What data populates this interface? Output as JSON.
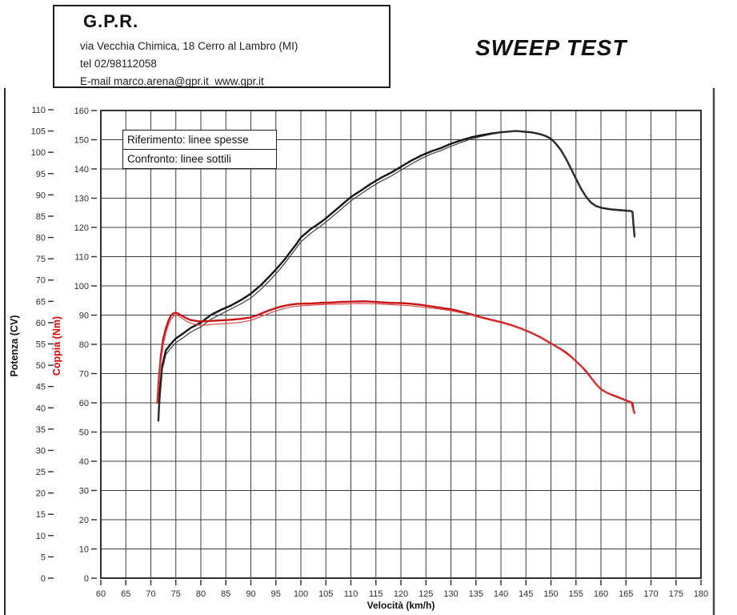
{
  "header": {
    "company": "G.P.R.",
    "address": "via Vecchia Chimica, 18 Cerro al Lambro (MI)",
    "phone": "tel 02/98112058",
    "email_line": "E-mail marco.arena@gpr.it  www.gpr.it"
  },
  "title": "SWEEP TEST",
  "legend": {
    "reference": "Riferimento: linee spesse",
    "comparison": "Confronto: linee sottili"
  },
  "chart_data": {
    "type": "line",
    "x_axis": {
      "label": "Velocità (km/h)",
      "min": 60,
      "max": 180,
      "tick_step": 5
    },
    "y_axis_power": {
      "label": "Potenza (CV)",
      "min": 0,
      "max": 110,
      "tick_step": 5,
      "color": "#111111"
    },
    "y_axis_torque": {
      "label": "Coppia (Nm)",
      "min": 0,
      "max": 160,
      "tick_step": 10,
      "color": "#e00000"
    },
    "grid": {
      "vertical_step_kmh": 5,
      "horizontal_step_nm": 10,
      "color": "#3c3c3c"
    },
    "series": [
      {
        "name": "potenza-riferimento",
        "axis": "cv",
        "color": "#141414",
        "width": 2.4,
        "points": [
          [
            71.5,
            37
          ],
          [
            71.8,
            44
          ],
          [
            72.3,
            50
          ],
          [
            73,
            53.5
          ],
          [
            74,
            55
          ],
          [
            75,
            56.3
          ],
          [
            76.5,
            57.5
          ],
          [
            78,
            58.8
          ],
          [
            80,
            60
          ],
          [
            82,
            61.8
          ],
          [
            84,
            63
          ],
          [
            86,
            64
          ],
          [
            88,
            65.3
          ],
          [
            90,
            66.8
          ],
          [
            92,
            68.8
          ],
          [
            94,
            71.2
          ],
          [
            95,
            72.5
          ],
          [
            96,
            73.8
          ],
          [
            97,
            75.2
          ],
          [
            98,
            76.8
          ],
          [
            99,
            78.3
          ],
          [
            100,
            80
          ],
          [
            101,
            81
          ],
          [
            102,
            82
          ],
          [
            103,
            82.8
          ],
          [
            104,
            83.6
          ],
          [
            105,
            84.5
          ],
          [
            106,
            85.5
          ],
          [
            107,
            86.5
          ],
          [
            108,
            87.5
          ],
          [
            109,
            88.5
          ],
          [
            110,
            89.5
          ],
          [
            112,
            91
          ],
          [
            114,
            92.6
          ],
          [
            116,
            94
          ],
          [
            118,
            95.2
          ],
          [
            120,
            96.6
          ],
          [
            122,
            98
          ],
          [
            124,
            99.2
          ],
          [
            126,
            100.2
          ],
          [
            128,
            101
          ],
          [
            130,
            102
          ],
          [
            132,
            102.8
          ],
          [
            134,
            103.5
          ],
          [
            136,
            104
          ],
          [
            138,
            104.4
          ],
          [
            140,
            104.7
          ],
          [
            142,
            104.9
          ],
          [
            143,
            105
          ],
          [
            144,
            104.9
          ],
          [
            145,
            104.8
          ],
          [
            146,
            104.7
          ],
          [
            147,
            104.5
          ],
          [
            148,
            104.2
          ],
          [
            149,
            103.8
          ],
          [
            150,
            103.2
          ],
          [
            151,
            102
          ],
          [
            152,
            100.5
          ],
          [
            153,
            98.5
          ],
          [
            154,
            96.2
          ],
          [
            155,
            93.8
          ],
          [
            156,
            91.5
          ],
          [
            157,
            89.6
          ],
          [
            158,
            88.2
          ],
          [
            159,
            87.4
          ],
          [
            160,
            87
          ],
          [
            161,
            86.8
          ],
          [
            162,
            86.6
          ],
          [
            163,
            86.5
          ],
          [
            164,
            86.4
          ],
          [
            165,
            86.3
          ],
          [
            166,
            86.2
          ],
          [
            166.3,
            86
          ],
          [
            166.5,
            83
          ],
          [
            166.7,
            80.3
          ]
        ]
      },
      {
        "name": "potenza-confronto",
        "axis": "cv",
        "color": "#3d3d3d",
        "width": 1.2,
        "points": [
          [
            71.5,
            37
          ],
          [
            72.3,
            49
          ],
          [
            73,
            52.5
          ],
          [
            74,
            54
          ],
          [
            75,
            55.3
          ],
          [
            76.5,
            56.5
          ],
          [
            78,
            57.8
          ],
          [
            80,
            59
          ],
          [
            82,
            60.8
          ],
          [
            84,
            62
          ],
          [
            86,
            63.2
          ],
          [
            88,
            64.4
          ],
          [
            90,
            65.8
          ],
          [
            92,
            67.8
          ],
          [
            94,
            70.2
          ],
          [
            96,
            72.8
          ],
          [
            98,
            75.8
          ],
          [
            100,
            79
          ],
          [
            102,
            81
          ],
          [
            104,
            82.7
          ],
          [
            106,
            84.6
          ],
          [
            108,
            86.6
          ],
          [
            110,
            88.6
          ],
          [
            112,
            90.2
          ],
          [
            114,
            91.8
          ],
          [
            116,
            93.2
          ],
          [
            118,
            94.4
          ],
          [
            120,
            95.8
          ],
          [
            122,
            97.2
          ],
          [
            124,
            98.5
          ],
          [
            126,
            99.6
          ],
          [
            128,
            100.4
          ],
          [
            130,
            101.4
          ],
          [
            132,
            102.3
          ],
          [
            134,
            103.1
          ],
          [
            136,
            103.7
          ],
          [
            138,
            104.2
          ],
          [
            140,
            104.6
          ],
          [
            142,
            104.9
          ],
          [
            143,
            105
          ],
          [
            144,
            105
          ],
          [
            145,
            104.9
          ],
          [
            146,
            104.8
          ],
          [
            147,
            104.6
          ],
          [
            148,
            104.3
          ],
          [
            149,
            103.9
          ],
          [
            150,
            103.3
          ],
          [
            151,
            102.1
          ],
          [
            152,
            100.6
          ],
          [
            153,
            98.6
          ],
          [
            154,
            96.3
          ],
          [
            155,
            93.9
          ],
          [
            156,
            91.6
          ],
          [
            157,
            89.7
          ],
          [
            158,
            88.3
          ],
          [
            159,
            87.5
          ],
          [
            160,
            87.1
          ],
          [
            162,
            86.7
          ],
          [
            164,
            86.5
          ],
          [
            166,
            86.3
          ],
          [
            166.3,
            86
          ],
          [
            166.5,
            82
          ],
          [
            166.7,
            80
          ]
        ]
      },
      {
        "name": "coppia-riferimento",
        "axis": "nm",
        "color": "#c81414",
        "width": 2.4,
        "points": [
          [
            71.3,
            60
          ],
          [
            71.6,
            68
          ],
          [
            72,
            76
          ],
          [
            72.5,
            82
          ],
          [
            73,
            85.5
          ],
          [
            73.5,
            88
          ],
          [
            74,
            89.8
          ],
          [
            74.5,
            90.6
          ],
          [
            75,
            90.8
          ],
          [
            75.5,
            90.5
          ],
          [
            76,
            90
          ],
          [
            77,
            89
          ],
          [
            78,
            88.3
          ],
          [
            79,
            88
          ],
          [
            80,
            87.8
          ],
          [
            81,
            87.9
          ],
          [
            82,
            88
          ],
          [
            84,
            88.2
          ],
          [
            86,
            88.4
          ],
          [
            88,
            88.7
          ],
          [
            90,
            89.2
          ],
          [
            91,
            89.8
          ],
          [
            92,
            90.5
          ],
          [
            93,
            91.2
          ],
          [
            94,
            91.8
          ],
          [
            95,
            92.4
          ],
          [
            96,
            92.9
          ],
          [
            97,
            93.3
          ],
          [
            98,
            93.6
          ],
          [
            99,
            93.8
          ],
          [
            100,
            93.9
          ],
          [
            102,
            94
          ],
          [
            104,
            94.2
          ],
          [
            106,
            94.3
          ],
          [
            108,
            94.5
          ],
          [
            110,
            94.6
          ],
          [
            112,
            94.7
          ],
          [
            113,
            94.7
          ],
          [
            114,
            94.6
          ],
          [
            115,
            94.5
          ],
          [
            116,
            94.4
          ],
          [
            118,
            94.2
          ],
          [
            120,
            94.1
          ],
          [
            122,
            93.9
          ],
          [
            124,
            93.5
          ],
          [
            126,
            93
          ],
          [
            128,
            92.5
          ],
          [
            130,
            92
          ],
          [
            132,
            91.2
          ],
          [
            134,
            90.3
          ],
          [
            136,
            89.3
          ],
          [
            138,
            88.4
          ],
          [
            140,
            87.6
          ],
          [
            142,
            86.6
          ],
          [
            144,
            85.4
          ],
          [
            146,
            84
          ],
          [
            148,
            82.3
          ],
          [
            150,
            80.3
          ],
          [
            152,
            78.3
          ],
          [
            153,
            77.2
          ],
          [
            154,
            75.8
          ],
          [
            155,
            74.2
          ],
          [
            156,
            72.6
          ],
          [
            157,
            70.8
          ],
          [
            158,
            68.6
          ],
          [
            159,
            66.4
          ],
          [
            160,
            64.6
          ],
          [
            161,
            63.6
          ],
          [
            162,
            62.8
          ],
          [
            163,
            62.2
          ],
          [
            164,
            61.5
          ],
          [
            165,
            60.8
          ],
          [
            166,
            60.2
          ],
          [
            166.3,
            59.8
          ],
          [
            166.5,
            57.5
          ],
          [
            166.7,
            56.5
          ]
        ]
      },
      {
        "name": "coppia-confronto",
        "axis": "nm",
        "color": "#e04848",
        "width": 1.2,
        "points": [
          [
            71.3,
            60
          ],
          [
            72,
            74
          ],
          [
            72.5,
            80
          ],
          [
            73,
            84
          ],
          [
            73.5,
            86.5
          ],
          [
            74,
            88.5
          ],
          [
            74.5,
            89.6
          ],
          [
            75,
            90
          ],
          [
            75.5,
            89.8
          ],
          [
            76,
            89.2
          ],
          [
            77,
            88
          ],
          [
            78,
            87.2
          ],
          [
            79,
            86.8
          ],
          [
            80,
            86.5
          ],
          [
            81,
            86.6
          ],
          [
            82,
            86.8
          ],
          [
            84,
            87
          ],
          [
            86,
            87.2
          ],
          [
            88,
            87.6
          ],
          [
            90,
            88.2
          ],
          [
            92,
            89.5
          ],
          [
            94,
            90.8
          ],
          [
            96,
            92
          ],
          [
            98,
            92.8
          ],
          [
            100,
            93.2
          ],
          [
            102,
            93.4
          ],
          [
            104,
            93.6
          ],
          [
            106,
            93.7
          ],
          [
            108,
            93.8
          ],
          [
            110,
            93.9
          ],
          [
            112,
            94
          ],
          [
            114,
            93.9
          ],
          [
            116,
            93.8
          ],
          [
            118,
            93.6
          ],
          [
            120,
            93.4
          ],
          [
            122,
            93.2
          ],
          [
            124,
            92.8
          ],
          [
            126,
            92.4
          ],
          [
            128,
            92
          ],
          [
            130,
            91.5
          ],
          [
            132,
            90.8
          ],
          [
            134,
            90
          ],
          [
            136,
            89
          ],
          [
            138,
            88.2
          ],
          [
            140,
            87.4
          ],
          [
            142,
            86.4
          ],
          [
            144,
            85.2
          ],
          [
            146,
            83.8
          ],
          [
            148,
            82.1
          ],
          [
            150,
            80.1
          ],
          [
            152,
            78.1
          ],
          [
            154,
            75.6
          ],
          [
            156,
            72.4
          ],
          [
            158,
            68.4
          ],
          [
            160,
            64.4
          ],
          [
            162,
            62.6
          ],
          [
            164,
            61.3
          ],
          [
            166,
            60
          ],
          [
            166.5,
            57
          ],
          [
            166.7,
            56.3
          ]
        ]
      }
    ]
  }
}
